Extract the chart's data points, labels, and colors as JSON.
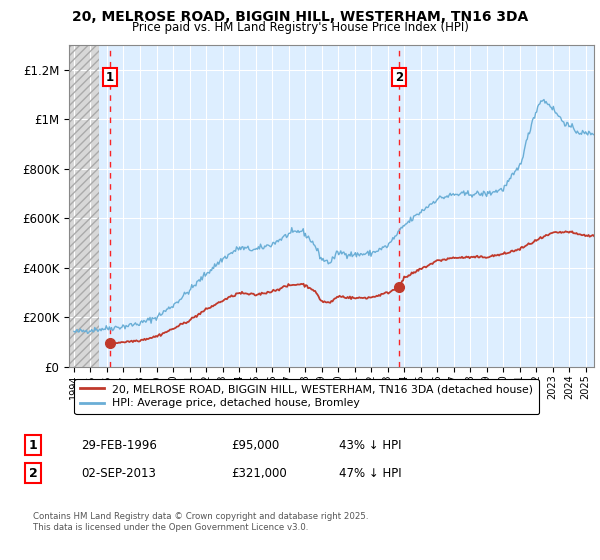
{
  "title_line1": "20, MELROSE ROAD, BIGGIN HILL, WESTERHAM, TN16 3DA",
  "title_line2": "Price paid vs. HM Land Registry's House Price Index (HPI)",
  "ylim": [
    0,
    1300000
  ],
  "xlim_start": 1993.7,
  "xlim_end": 2025.5,
  "hatch_end_year": 1995.5,
  "sale1_year": 1996.16,
  "sale1_price": 95000,
  "sale1_label": "1",
  "sale2_year": 2013.67,
  "sale2_price": 321000,
  "sale2_label": "2",
  "legend_line1": "20, MELROSE ROAD, BIGGIN HILL, WESTERHAM, TN16 3DA (detached house)",
  "legend_line2": "HPI: Average price, detached house, Bromley",
  "annotation1_date": "29-FEB-1996",
  "annotation1_price": "£95,000",
  "annotation1_hpi": "43% ↓ HPI",
  "annotation2_date": "02-SEP-2013",
  "annotation2_price": "£321,000",
  "annotation2_hpi": "47% ↓ HPI",
  "footer": "Contains HM Land Registry data © Crown copyright and database right 2025.\nThis data is licensed under the Open Government Licence v3.0.",
  "hpi_color": "#6aaed6",
  "price_color": "#c0392b",
  "bg_color": "#ddeeff",
  "grid_color": "#ffffff",
  "sale_marker_color": "#c0392b",
  "yticks": [
    0,
    200000,
    400000,
    600000,
    800000,
    1000000,
    1200000
  ],
  "ytick_labels": [
    "£0",
    "£200K",
    "£400K",
    "£600K",
    "£800K",
    "£1M",
    "£1.2M"
  ],
  "xtick_years": [
    1994,
    1995,
    1996,
    1997,
    1998,
    1999,
    2000,
    2001,
    2002,
    2003,
    2004,
    2005,
    2006,
    2007,
    2008,
    2009,
    2010,
    2011,
    2012,
    2013,
    2014,
    2015,
    2016,
    2017,
    2018,
    2019,
    2020,
    2021,
    2022,
    2023,
    2024,
    2025
  ]
}
